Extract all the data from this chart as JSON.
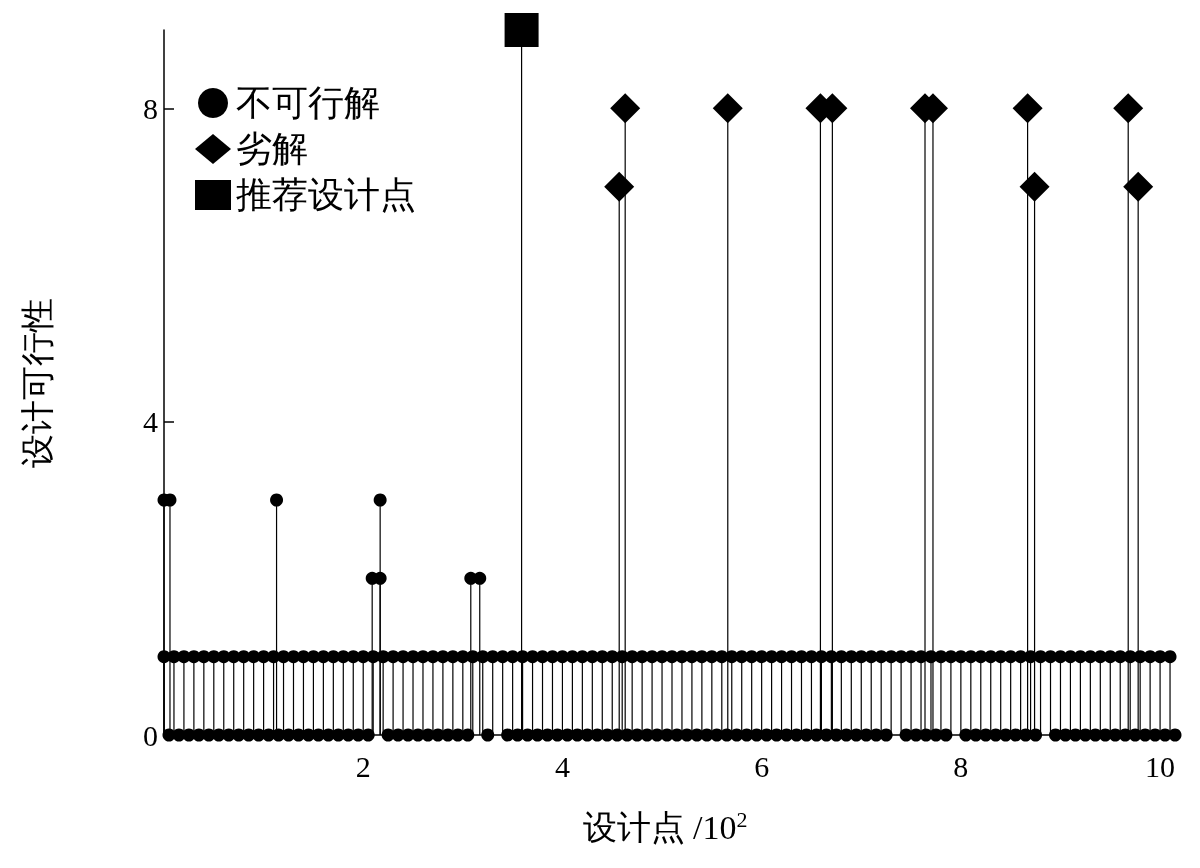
{
  "chart_data": {
    "type": "lollipop",
    "xlabel": "设计点 /10$^{2}$",
    "ylabel": "设计可行性",
    "xlim": [
      0,
      10.2
    ],
    "xticks": [
      2,
      4,
      6,
      8,
      10
    ],
    "ylim": [
      0,
      9
    ],
    "yticks": [
      0,
      4,
      8
    ],
    "legend": "top left",
    "series": [
      {
        "name": "不可行解",
        "color": "#000000",
        "marker": "circle",
        "x": [
          0,
          0.05,
          0.1,
          0.15,
          0.2,
          0.25,
          0.3,
          0.35,
          0.4,
          0.45,
          0.5,
          0.55,
          0.6,
          0.65,
          0.7,
          0.75,
          0.8,
          0.85,
          0.9,
          0.95,
          1,
          1.05,
          1.1,
          1.15,
          1.2,
          1.25,
          1.3,
          1.35,
          1.4,
          1.45,
          1.5,
          1.55,
          1.6,
          1.65,
          1.7,
          1.75,
          1.8,
          1.85,
          1.9,
          1.95,
          2,
          2.05,
          2.1,
          2.2,
          2.25,
          2.3,
          2.35,
          2.4,
          2.45,
          2.5,
          2.55,
          2.6,
          2.65,
          2.7,
          2.75,
          2.8,
          2.85,
          2.9,
          2.95,
          3,
          3.05,
          3.1,
          3.2,
          3.25,
          3.3,
          3.4,
          3.45,
          3.5,
          3.55,
          3.6,
          3.65,
          3.7,
          3.75,
          3.8,
          3.85,
          3.9,
          3.95,
          4,
          4.05,
          4.1,
          4.15,
          4.2,
          4.25,
          4.3,
          4.35,
          4.4,
          4.45,
          4.5,
          4.55,
          4.6,
          4.65,
          4.7,
          4.75,
          4.8,
          4.85,
          4.9,
          4.95,
          5,
          5.05,
          5.1,
          5.15,
          5.2,
          5.25,
          5.3,
          5.35,
          5.4,
          5.45,
          5.5,
          5.55,
          5.6,
          5.65,
          5.7,
          5.75,
          5.8,
          5.85,
          5.9,
          5.95,
          6,
          6.05,
          6.1,
          6.15,
          6.2,
          6.25,
          6.3,
          6.35,
          6.4,
          6.45,
          6.5,
          6.55,
          6.6,
          6.65,
          6.7,
          6.75,
          6.8,
          6.85,
          6.9,
          6.95,
          7,
          7.05,
          7.1,
          7.15,
          7.2,
          7.25,
          7.3,
          7.4,
          7.45,
          7.5,
          7.55,
          7.6,
          7.65,
          7.7,
          7.75,
          7.8,
          7.85,
          7.9,
          8,
          8.05,
          8.1,
          8.15,
          8.2,
          8.25,
          8.3,
          8.35,
          8.4,
          8.45,
          8.5,
          8.55,
          8.6,
          8.65,
          8.7,
          8.75,
          8.8,
          8.9,
          8.95,
          9,
          9.05,
          9.1,
          9.15,
          9.2,
          9.25,
          9.3,
          9.35,
          9.4,
          9.45,
          9.5,
          9.55,
          9.6,
          9.65,
          9.7,
          9.75,
          9.8,
          9.85,
          9.9,
          9.95,
          10,
          10.05,
          10.1,
          10.15,
          0,
          0.06,
          1.13,
          2.09,
          2.17,
          2.17,
          3.08,
          3.17
        ],
        "values": [
          1,
          0,
          1,
          0,
          1,
          0,
          1,
          0,
          1,
          0,
          1,
          0,
          1,
          0,
          1,
          0,
          1,
          0,
          1,
          0,
          1,
          0,
          1,
          0,
          1,
          0,
          1,
          0,
          1,
          0,
          1,
          0,
          1,
          0,
          1,
          0,
          1,
          0,
          1,
          0,
          1,
          0,
          1,
          1,
          0,
          1,
          0,
          1,
          0,
          1,
          0,
          1,
          0,
          1,
          0,
          1,
          0,
          1,
          0,
          1,
          0,
          1,
          1,
          0,
          1,
          1,
          0,
          1,
          0,
          1,
          0,
          1,
          0,
          1,
          0,
          1,
          0,
          1,
          0,
          1,
          0,
          1,
          0,
          1,
          0,
          1,
          0,
          1,
          0,
          1,
          0,
          1,
          0,
          1,
          0,
          1,
          0,
          1,
          0,
          1,
          0,
          1,
          0,
          1,
          0,
          1,
          0,
          1,
          0,
          1,
          0,
          1,
          0,
          1,
          0,
          1,
          0,
          1,
          0,
          1,
          0,
          1,
          0,
          1,
          0,
          1,
          0,
          1,
          0,
          1,
          0,
          1,
          0,
          1,
          0,
          1,
          0,
          1,
          0,
          1,
          0,
          1,
          0,
          1,
          1,
          0,
          1,
          0,
          1,
          0,
          1,
          0,
          1,
          0,
          1,
          1,
          0,
          1,
          0,
          1,
          0,
          1,
          0,
          1,
          0,
          1,
          0,
          1,
          0,
          1,
          0,
          1,
          1,
          0,
          1,
          0,
          1,
          0,
          1,
          0,
          1,
          0,
          1,
          0,
          1,
          0,
          1,
          0,
          1,
          0,
          1,
          0,
          1,
          0,
          1,
          0,
          1,
          0,
          3,
          3,
          3,
          2,
          2,
          3,
          2,
          2
        ]
      },
      {
        "name": "劣解",
        "color": "#000000",
        "marker": "diamond",
        "x": [
          4.57,
          4.63,
          5.66,
          6.59,
          6.71,
          7.64,
          7.72,
          8.67,
          8.74,
          9.68,
          9.78
        ],
        "values": [
          7,
          8,
          8,
          8,
          8,
          8,
          8,
          8,
          7,
          8,
          7
        ]
      },
      {
        "name": "推荐设计点",
        "color": "#000000",
        "marker": "square",
        "x": [
          3.59
        ],
        "values": [
          9
        ]
      }
    ]
  }
}
